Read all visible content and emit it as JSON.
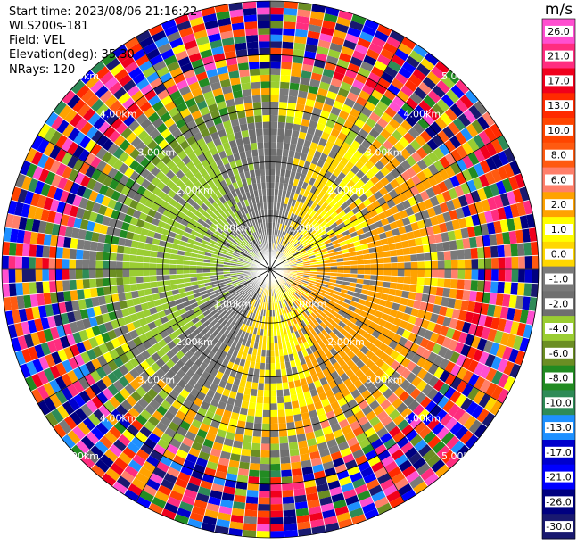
{
  "info": {
    "start_time": "Start time: 2023/08/06 21:16:22",
    "instrument": "WLS200s-181",
    "field": "Field: VEL",
    "elevation": "Elevation(deg): 35.30",
    "nrays": "NRays: 120"
  },
  "chart_data": {
    "type": "heatmap",
    "projection": "polar-ppi",
    "field": "VEL",
    "unit": "m/s",
    "nrays": 120,
    "range_rings_km": [
      1.0,
      2.0,
      3.0,
      4.0,
      5.0,
      6.0
    ],
    "ring_labels": [
      "1.00km",
      "2.00km",
      "3.00km",
      "4.00km",
      "5.00km",
      "6.00km"
    ],
    "colorbar": {
      "title": "m/s",
      "ticks": [
        "26.0",
        "21.0",
        "17.0",
        "13.0",
        "10.0",
        "8.0",
        "6.0",
        "2.0",
        "1.0",
        "0.0",
        "-1.0",
        "-2.0",
        "-4.0",
        "-6.0",
        "-8.0",
        "-10.0",
        "-13.0",
        "-17.0",
        "-21.0",
        "-26.0",
        "-30.0"
      ],
      "bins": [
        {
          "from": 26,
          "to": 30,
          "color": "#ff4fd0"
        },
        {
          "from": 21,
          "to": 26,
          "color": "#ff2d7f"
        },
        {
          "from": 17,
          "to": 21,
          "color": "#f0001c"
        },
        {
          "from": 13,
          "to": 17,
          "color": "#ff2a00"
        },
        {
          "from": 10,
          "to": 13,
          "color": "#ff4500"
        },
        {
          "from": 8,
          "to": 10,
          "color": "#ff5a10"
        },
        {
          "from": 6,
          "to": 8,
          "color": "#ff7f6a"
        },
        {
          "from": 2,
          "to": 6,
          "color": "#ffa200"
        },
        {
          "from": 1,
          "to": 2,
          "color": "#ffff00"
        },
        {
          "from": 0,
          "to": 1,
          "color": "#ffd700"
        },
        {
          "from": -1,
          "to": 0,
          "color": "#7a7a7a"
        },
        {
          "from": -2,
          "to": -1,
          "color": "#6f6f6f"
        },
        {
          "from": -4,
          "to": -2,
          "color": "#9acd32"
        },
        {
          "from": -6,
          "to": -4,
          "color": "#6b8e23"
        },
        {
          "from": -8,
          "to": -6,
          "color": "#228b22"
        },
        {
          "from": -10,
          "to": -8,
          "color": "#2e8b57"
        },
        {
          "from": -13,
          "to": -10,
          "color": "#1e90ff"
        },
        {
          "from": -17,
          "to": -13,
          "color": "#0000cd"
        },
        {
          "from": -21,
          "to": -17,
          "color": "#0000ff"
        },
        {
          "from": -26,
          "to": -21,
          "color": "#000080"
        },
        {
          "from": -30,
          "to": -26,
          "color": "#191970"
        }
      ]
    }
  }
}
